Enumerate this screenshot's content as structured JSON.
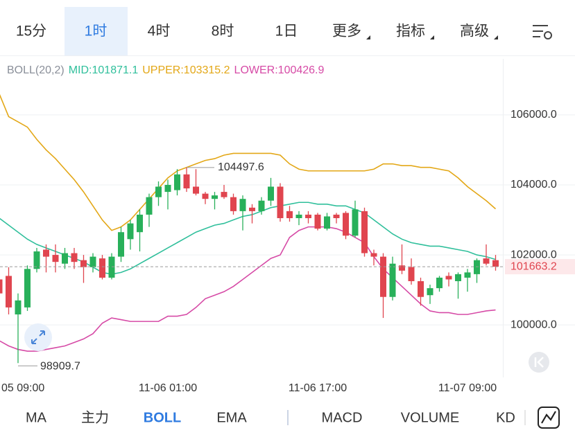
{
  "top_tabs": [
    "15分",
    "1时",
    "4时",
    "8时",
    "1日",
    "更多",
    "指标",
    "高级"
  ],
  "top_active": 1,
  "bottom_tabs": [
    "MA",
    "主力",
    "BOLL",
    "EMA",
    "MACD",
    "VOLUME",
    "KD"
  ],
  "bottom_active": 2,
  "chart_data": {
    "type": "candlestick",
    "legend": [
      {
        "text": "BOLL(20,2)",
        "color": "#8a8f99"
      },
      {
        "text": "MID:101871.1",
        "color": "#2fbf9b"
      },
      {
        "text": "UPPER:103315.2",
        "color": "#e3a716"
      },
      {
        "text": "LOWER:100426.9",
        "color": "#d64aa6"
      }
    ],
    "categories": [
      null,
      null,
      "05 09:00",
      null,
      null,
      null,
      null,
      null,
      null,
      null,
      null,
      null,
      null,
      null,
      null,
      null,
      null,
      null,
      "11-06 01:00",
      null,
      null,
      null,
      null,
      null,
      null,
      null,
      null,
      null,
      null,
      null,
      null,
      null,
      null,
      null,
      "11-06 17:00",
      null,
      null,
      null,
      null,
      null,
      null,
      null,
      null,
      null,
      null,
      null,
      null,
      null,
      null,
      null,
      "11-07 09:00",
      null,
      null,
      null
    ],
    "open": [
      101300,
      101400,
      100300,
      100500,
      101600,
      102150,
      102000,
      101750,
      102050,
      101850,
      101650,
      101900,
      101350,
      101950,
      102450,
      102650,
      103150,
      103650,
      103800,
      103850,
      104300,
      103950,
      103750,
      103600,
      103800,
      103650,
      103250,
      103350,
      103250,
      103550,
      103950,
      103250,
      103050,
      103150,
      103150,
      102750,
      103150,
      103200,
      102550,
      103250,
      102050,
      101950,
      100800,
      101700,
      101650,
      101250,
      100850,
      101050,
      101400,
      101250,
      101350,
      101450,
      101900,
      101850
    ],
    "high": [
      101400,
      101650,
      100900,
      101700,
      102200,
      102300,
      102300,
      102200,
      102200,
      102000,
      102050,
      102000,
      102050,
      102800,
      103000,
      103300,
      103750,
      104100,
      104150,
      104450,
      104497.6,
      104450,
      103800,
      103800,
      104000,
      103750,
      103700,
      103450,
      103650,
      104200,
      104050,
      103400,
      103250,
      103250,
      103200,
      103200,
      103200,
      103250,
      103550,
      103350,
      102150,
      102050,
      101950,
      102300,
      101900,
      101350,
      101150,
      101400,
      101500,
      101500,
      101600,
      101900,
      102300,
      102000
    ],
    "low": [
      100800,
      100300,
      98909.7,
      100400,
      101500,
      101500,
      101500,
      101600,
      101600,
      101200,
      101500,
      101300,
      101300,
      101800,
      102150,
      102100,
      102800,
      103400,
      103300,
      103700,
      103800,
      103700,
      103450,
      103300,
      103600,
      103150,
      102700,
      102900,
      103150,
      103400,
      102950,
      102950,
      102850,
      102900,
      102700,
      102700,
      102900,
      102450,
      102500,
      101950,
      101700,
      100200,
      100700,
      101450,
      101150,
      100550,
      100600,
      100950,
      101100,
      100750,
      100950,
      101200,
      101700,
      101550
    ],
    "close": [
      100900,
      100500,
      100700,
      101600,
      102100,
      101950,
      101800,
      102050,
      101800,
      101650,
      101950,
      101350,
      101950,
      102650,
      102900,
      103150,
      103650,
      103950,
      104000,
      104300,
      103900,
      103750,
      103600,
      103700,
      103650,
      103250,
      103600,
      103250,
      103550,
      103950,
      103050,
      103050,
      103150,
      103050,
      102750,
      103100,
      103050,
      102550,
      103300,
      102050,
      101950,
      100800,
      101750,
      101550,
      101250,
      100800,
      101050,
      101350,
      101300,
      101450,
      101500,
      101850,
      101750,
      101663.2
    ],
    "series": [
      {
        "color": "#e3a716",
        "values": [
          106600,
          105950,
          105800,
          105650,
          105300,
          105000,
          104750,
          104450,
          104150,
          103800,
          103400,
          103000,
          102700,
          102800,
          103000,
          103300,
          103600,
          103900,
          104200,
          104400,
          104500,
          104600,
          104700,
          104750,
          104850,
          104900,
          104900,
          104900,
          104900,
          104900,
          104850,
          104600,
          104450,
          104400,
          104400,
          104400,
          104400,
          104400,
          104400,
          104400,
          104450,
          104600,
          104600,
          104550,
          104550,
          104500,
          104500,
          104450,
          104400,
          104200,
          103950,
          103750,
          103550,
          103315.2
        ]
      },
      {
        "color": "#2fbf9b",
        "values": [
          103050,
          102850,
          102650,
          102450,
          102300,
          102200,
          102100,
          102000,
          101900,
          101800,
          101650,
          101500,
          101450,
          101500,
          101600,
          101750,
          101900,
          102050,
          102200,
          102350,
          102500,
          102650,
          102750,
          102850,
          102900,
          103000,
          103100,
          103150,
          103250,
          103350,
          103400,
          103450,
          103500,
          103500,
          103450,
          103450,
          103400,
          103400,
          103300,
          103200,
          103000,
          102800,
          102600,
          102450,
          102350,
          102300,
          102250,
          102250,
          102200,
          102150,
          102100,
          102000,
          101950,
          101871.1
        ]
      },
      {
        "color": "#d64aa6",
        "values": [
          99550,
          99400,
          99300,
          99250,
          99250,
          99300,
          99350,
          99400,
          99500,
          99600,
          99750,
          100050,
          100200,
          100150,
          100100,
          100100,
          100100,
          100100,
          100250,
          100250,
          100300,
          100500,
          100750,
          100850,
          100950,
          101100,
          101300,
          101500,
          101700,
          101900,
          102000,
          102500,
          102700,
          102800,
          102800,
          102800,
          102750,
          102650,
          102500,
          102350,
          101950,
          101600,
          101350,
          101100,
          100850,
          100600,
          100400,
          100350,
          100350,
          100300,
          100300,
          100350,
          100400,
          100426.9
        ]
      }
    ],
    "up_color": "#28b05a",
    "down_color": "#e0454f",
    "ylim": [
      98500,
      107600
    ],
    "yticks": [
      {
        "value": 100000,
        "label": "100000.0"
      },
      {
        "value": 102000,
        "label": "102000.0"
      },
      {
        "value": 104000,
        "label": "104000.0"
      },
      {
        "value": 106000,
        "label": "106000.0"
      }
    ],
    "grid": true,
    "last_price_line": true,
    "max_index": 20,
    "min_index": 2
  }
}
